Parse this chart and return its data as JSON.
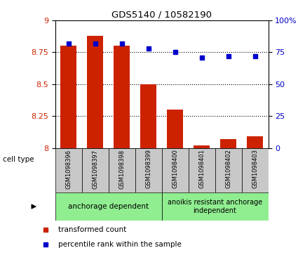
{
  "title": "GDS5140 / 10582190",
  "samples": [
    "GSM1098396",
    "GSM1098397",
    "GSM1098398",
    "GSM1098399",
    "GSM1098400",
    "GSM1098401",
    "GSM1098402",
    "GSM1098403"
  ],
  "bar_values": [
    8.8,
    8.88,
    8.8,
    8.5,
    8.3,
    8.02,
    8.07,
    8.09
  ],
  "scatter_values": [
    82,
    82,
    82,
    78,
    75,
    71,
    72,
    72
  ],
  "ylim_left": [
    8.0,
    9.0
  ],
  "ylim_right": [
    0,
    100
  ],
  "yticks_left": [
    8.0,
    8.25,
    8.5,
    8.75,
    9.0
  ],
  "ytick_labels_left": [
    "8",
    "8.25",
    "8.5",
    "8.75",
    "9"
  ],
  "yticks_right": [
    0,
    25,
    50,
    75,
    100
  ],
  "ytick_labels_right": [
    "0",
    "25",
    "50",
    "75",
    "100%"
  ],
  "bar_color": "#CC2200",
  "scatter_color": "#0000CC",
  "bar_base": 8.0,
  "group1_label": "anchorage dependent",
  "group1_indices": [
    0,
    1,
    2,
    3
  ],
  "group2_label": "anoikis resistant anchorage\nindependent",
  "group2_indices": [
    4,
    5,
    6,
    7
  ],
  "group_color": "#90EE90",
  "cell_type_label": "cell type",
  "legend_red_label": "transformed count",
  "legend_blue_label": "percentile rank within the sample",
  "grid_color": "black",
  "grid_linestyle": "dotted",
  "grid_linewidth": 0.8,
  "tick_label_color_left": "#CC2200",
  "tick_label_color_right": "#0000CC",
  "sample_bg_color": "#C8C8C8"
}
